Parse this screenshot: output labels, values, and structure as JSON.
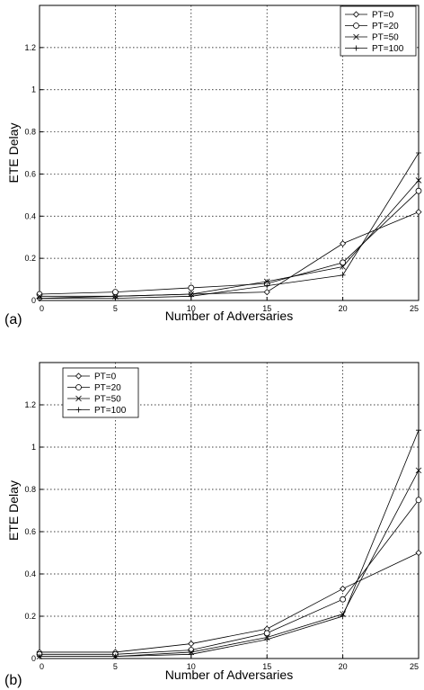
{
  "chart_data": [
    {
      "type": "line",
      "panel_label": "(a)",
      "xlabel": "Number of Adversaries",
      "ylabel": "ETE Delay",
      "xlim": [
        0,
        25
      ],
      "ylim": [
        0,
        1.4
      ],
      "x_ticks": [
        0,
        5,
        10,
        15,
        20,
        25
      ],
      "y_ticks": [
        0,
        0.2,
        0.4,
        0.6,
        0.8,
        1,
        1.2
      ],
      "y_tick_labels": [
        "0",
        "0.2",
        "0.4",
        "0.6",
        "0.8",
        "1",
        "1.2"
      ],
      "grid": true,
      "legend_position": "top-right",
      "x": [
        0,
        5,
        10,
        15,
        20,
        25
      ],
      "series": [
        {
          "name": "PT=0",
          "marker": "diamond",
          "values": [
            0.01,
            0.02,
            0.03,
            0.04,
            0.27,
            0.42
          ]
        },
        {
          "name": "PT=20",
          "marker": "circle",
          "values": [
            0.03,
            0.04,
            0.06,
            0.08,
            0.18,
            0.52
          ]
        },
        {
          "name": "PT=50",
          "marker": "x",
          "values": [
            0.02,
            0.02,
            0.03,
            0.09,
            0.16,
            0.57
          ]
        },
        {
          "name": "PT=100",
          "marker": "plus",
          "values": [
            0.01,
            0.01,
            0.02,
            0.07,
            0.12,
            0.7
          ]
        }
      ]
    },
    {
      "type": "line",
      "panel_label": "(b)",
      "xlabel": "Number of Adversaries",
      "ylabel": "ETE Delay",
      "xlim": [
        0,
        25
      ],
      "ylim": [
        0,
        1.4
      ],
      "x_ticks": [
        0,
        5,
        10,
        15,
        20,
        25
      ],
      "y_ticks": [
        0,
        0.2,
        0.4,
        0.6,
        0.8,
        1,
        1.2
      ],
      "y_tick_labels": [
        "0",
        "0.2",
        "0.4",
        "0.6",
        "0.8",
        "1",
        "1.2"
      ],
      "grid": true,
      "legend_position": "top-left",
      "x": [
        0,
        5,
        10,
        15,
        20,
        25
      ],
      "series": [
        {
          "name": "PT=0",
          "marker": "diamond",
          "values": [
            0.03,
            0.03,
            0.07,
            0.14,
            0.33,
            0.5
          ]
        },
        {
          "name": "PT=20",
          "marker": "circle",
          "values": [
            0.02,
            0.02,
            0.04,
            0.12,
            0.28,
            0.75
          ]
        },
        {
          "name": "PT=50",
          "marker": "x",
          "values": [
            0.01,
            0.01,
            0.03,
            0.1,
            0.21,
            0.89
          ]
        },
        {
          "name": "PT=100",
          "marker": "plus",
          "values": [
            0.01,
            0.01,
            0.02,
            0.09,
            0.2,
            1.08
          ]
        }
      ]
    }
  ]
}
